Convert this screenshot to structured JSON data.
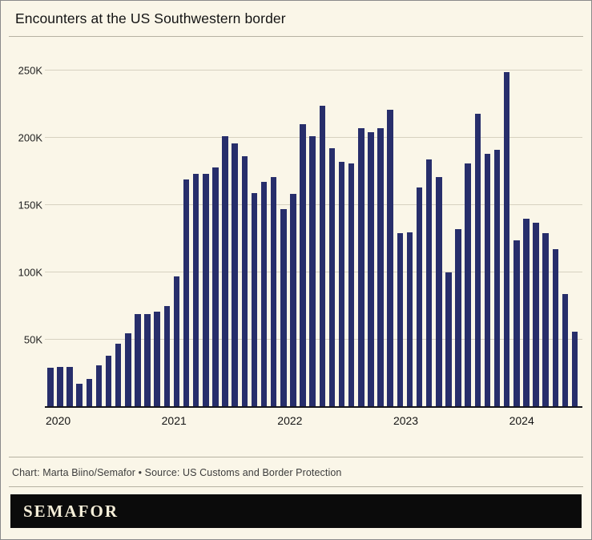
{
  "title": "Encounters at the US Southwestern border",
  "credit": "Chart: Marta Biino/Semafor • Source: US Customs and Border Protection",
  "logo": "SEMAFOR",
  "colors": {
    "background": "#faf6e8",
    "bar": "#272e6b",
    "gridline": "#d6d1c0",
    "axis": "#15151c"
  },
  "chart_data": {
    "type": "bar",
    "title": "Encounters at the US Southwestern border",
    "unit": "thousands of encounters (K)",
    "legend": "none",
    "grid": "horizontal",
    "ylim": [
      0,
      260
    ],
    "y_ticks": [
      50,
      100,
      150,
      200,
      250
    ],
    "y_tick_labels": [
      "50K",
      "100K",
      "150K",
      "200K",
      "250K"
    ],
    "x_tick_labels": [
      "2020",
      "2021",
      "2022",
      "2023",
      "2024"
    ],
    "x": [
      "Jan 2020",
      "Feb 2020",
      "Mar 2020",
      "Apr 2020",
      "May 2020",
      "Jun 2020",
      "Jul 2020",
      "Aug 2020",
      "Sep 2020",
      "Oct 2020",
      "Nov 2020",
      "Dec 2020",
      "Jan 2021",
      "Feb 2021",
      "Mar 2021",
      "Apr 2021",
      "May 2021",
      "Jun 2021",
      "Jul 2021",
      "Aug 2021",
      "Sep 2021",
      "Oct 2021",
      "Nov 2021",
      "Dec 2021",
      "Jan 2022",
      "Feb 2022",
      "Mar 2022",
      "Apr 2022",
      "May 2022",
      "Jun 2022",
      "Jul 2022",
      "Aug 2022",
      "Sep 2022",
      "Oct 2022",
      "Nov 2022",
      "Dec 2022",
      "Jan 2023",
      "Feb 2023",
      "Mar 2023",
      "Apr 2023",
      "May 2023",
      "Jun 2023",
      "Jul 2023",
      "Aug 2023",
      "Sep 2023",
      "Oct 2023",
      "Nov 2023",
      "Dec 2023",
      "Jan 2024",
      "Feb 2024",
      "Mar 2024",
      "Apr 2024",
      "May 2024",
      "Jun 2024",
      "Jul 2024"
    ],
    "values": [
      29,
      30,
      30,
      17,
      21,
      31,
      38,
      47,
      55,
      69,
      69,
      71,
      75,
      97,
      169,
      173,
      173,
      178,
      201,
      196,
      186,
      159,
      167,
      171,
      147,
      158,
      210,
      201,
      224,
      192,
      182,
      181,
      207,
      204,
      207,
      221,
      129,
      130,
      163,
      184,
      171,
      100,
      132,
      181,
      218,
      188,
      191,
      249,
      124,
      140,
      137,
      129,
      117,
      84,
      56
    ]
  }
}
